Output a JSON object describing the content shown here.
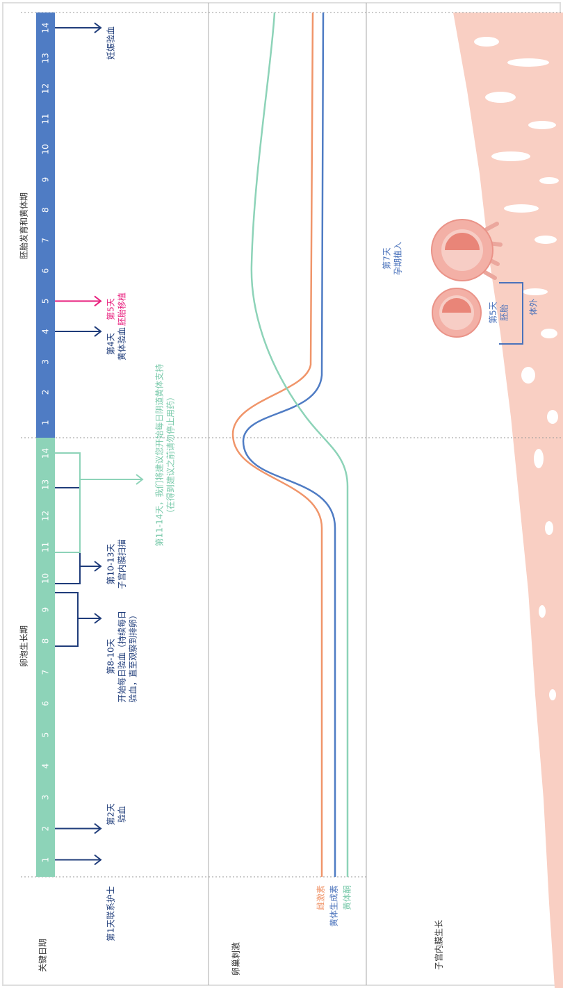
{
  "sections": [
    "关键日期",
    "卵巢刺激",
    "子宫内膜生长"
  ],
  "phases": [
    "卵泡生长期",
    "胚胎发育和黄体期"
  ],
  "follicular_days": [
    1,
    2,
    3,
    4,
    5,
    6,
    7,
    8,
    9,
    10,
    11,
    12,
    13,
    14
  ],
  "luteal_days": [
    1,
    2,
    3,
    4,
    5,
    6,
    7,
    8,
    9,
    10,
    11,
    12,
    13,
    14
  ],
  "key_dates": [
    [
      "第1天联系护士"
    ],
    [
      "第2天",
      "验血"
    ],
    [
      "第8-10天",
      "开始每日验血（持续每日",
      "验血，直至观察到排卵）"
    ],
    [
      "第10-13天",
      "子宫内膜扫描"
    ],
    [
      "第11-14天，我们将建议您开始每日阴道黄体支持",
      "（在得到建议之前请勿停止用药）"
    ],
    [
      "第4天",
      "黄体验血"
    ],
    [
      "第5天",
      "胚胎移植"
    ],
    [
      "妊娠验血"
    ]
  ],
  "hormones": [
    "雌激素",
    "黄体生成素",
    "黄体酮"
  ],
  "endometrium_labels": {
    "implantation": [
      "第7天",
      "孕期植入"
    ],
    "embryo": [
      "第5天",
      "胚胎"
    ],
    "in_vitro": "体外"
  }
}
